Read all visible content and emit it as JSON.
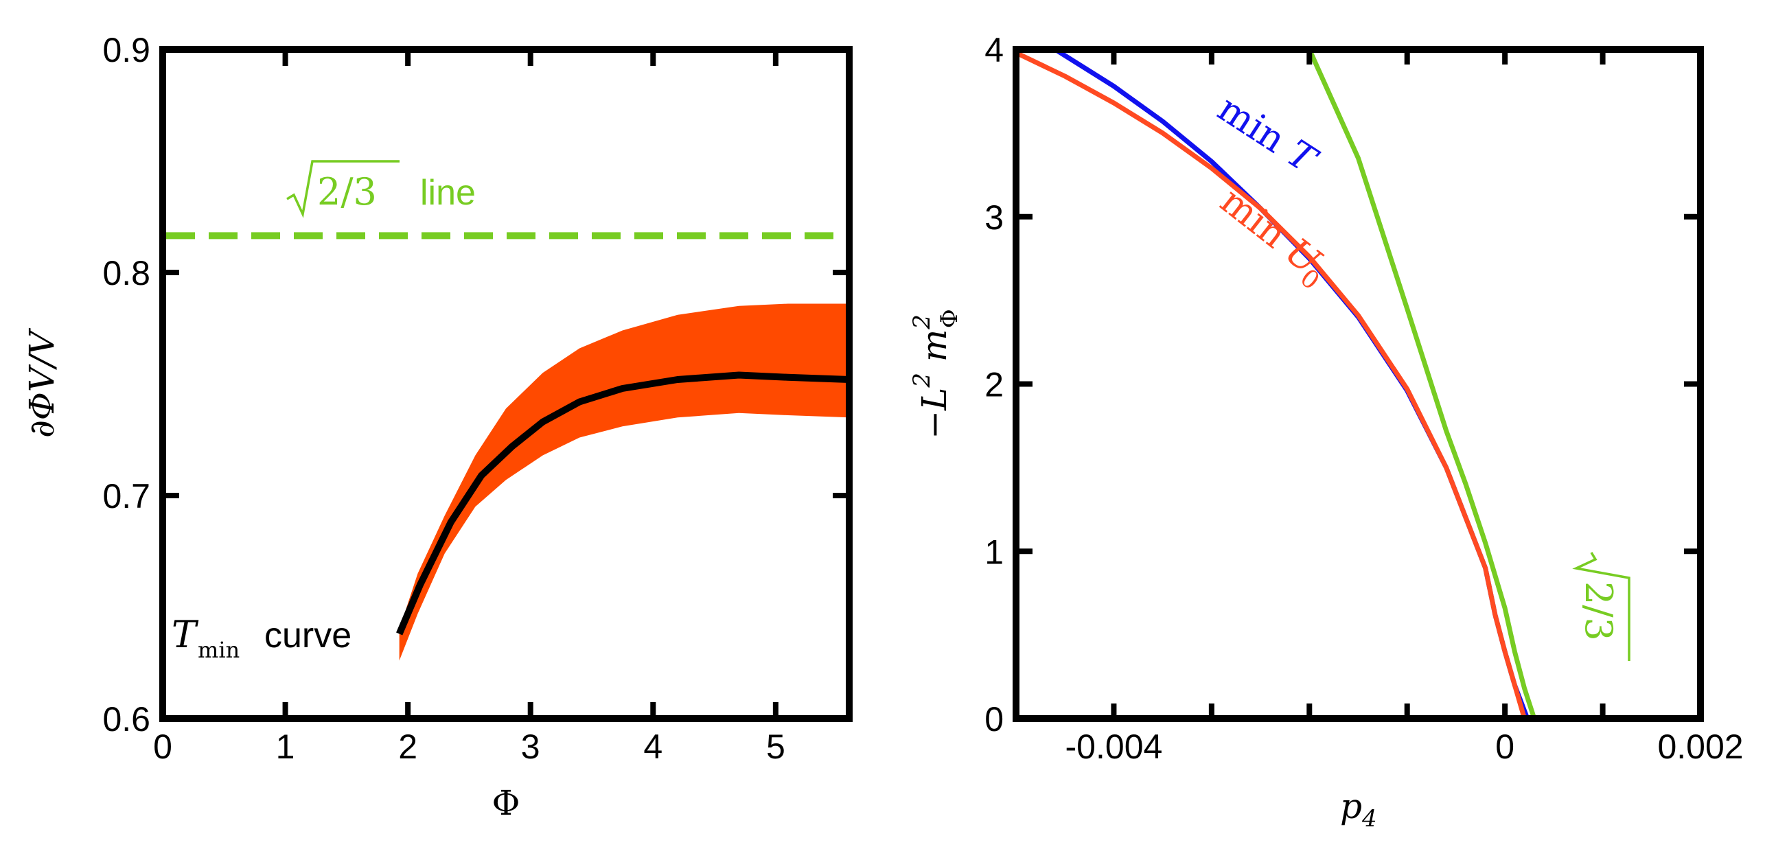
{
  "chart_data": [
    {
      "type": "line",
      "panel": "left",
      "xlabel": "Φ",
      "ylabel": "∂ΦV/V",
      "xlim": [
        0,
        5.6
      ],
      "ylim": [
        0.6,
        0.9
      ],
      "x_ticks": [
        "0",
        "1",
        "2",
        "3",
        "4",
        "5"
      ],
      "y_ticks": [
        "0.6",
        "0.7",
        "0.8",
        "0.9"
      ],
      "grid": false,
      "reference_line": {
        "value": 0.8165,
        "label": "√2/3 line",
        "color": "#77cc22",
        "style": "dashed"
      },
      "band": {
        "color": "#ff4a00",
        "x": [
          1.93,
          2.08,
          2.3,
          2.55,
          2.8,
          3.1,
          3.4,
          3.75,
          4.2,
          4.7,
          5.1,
          5.6
        ],
        "lower": [
          0.626,
          0.647,
          0.674,
          0.695,
          0.707,
          0.718,
          0.726,
          0.731,
          0.735,
          0.737,
          0.736,
          0.735
        ],
        "upper": [
          0.64,
          0.665,
          0.691,
          0.718,
          0.739,
          0.755,
          0.766,
          0.774,
          0.781,
          0.785,
          0.786,
          0.786
        ]
      },
      "series": [
        {
          "name": "Tmin curve",
          "color": "#000000",
          "x": [
            1.93,
            2.1,
            2.35,
            2.6,
            2.85,
            3.1,
            3.4,
            3.75,
            4.2,
            4.7,
            5.1,
            5.6
          ],
          "y": [
            0.638,
            0.66,
            0.688,
            0.709,
            0.722,
            0.733,
            0.742,
            0.748,
            0.752,
            0.754,
            0.753,
            0.752
          ]
        }
      ]
    },
    {
      "type": "line",
      "panel": "right",
      "xlabel": "p4",
      "ylabel": "−L² m²Φ",
      "xlim": [
        -0.005,
        0.002
      ],
      "ylim": [
        0,
        4
      ],
      "x_ticks": [
        "-0.004",
        "0",
        "0.002"
      ],
      "y_ticks": [
        "0",
        "1",
        "2",
        "3",
        "4"
      ],
      "grid": false,
      "series": [
        {
          "name": "min T",
          "color": "#1111ee",
          "x": [
            -0.0046,
            -0.004,
            -0.0035,
            -0.003,
            -0.0025,
            -0.002,
            -0.0015,
            -0.001,
            -0.0006,
            -0.0004,
            -0.0002,
            -0.0001,
            0.0,
            0.0001,
            0.00023
          ],
          "y": [
            4.0,
            3.78,
            3.57,
            3.33,
            3.05,
            2.75,
            2.4,
            1.96,
            1.5,
            1.2,
            0.9,
            0.62,
            0.4,
            0.2,
            0.0
          ]
        },
        {
          "name": "min U0",
          "color": "#ff4a22",
          "x": [
            -0.005,
            -0.0045,
            -0.004,
            -0.0035,
            -0.003,
            -0.0025,
            -0.002,
            -0.0015,
            -0.001,
            -0.0006,
            -0.0004,
            -0.0002,
            -0.0001,
            0.0,
            0.0001,
            0.0002
          ],
          "y": [
            3.98,
            3.84,
            3.68,
            3.5,
            3.29,
            3.05,
            2.76,
            2.41,
            1.97,
            1.5,
            1.2,
            0.9,
            0.62,
            0.4,
            0.2,
            0.0
          ]
        },
        {
          "name": "√2/3",
          "color": "#77cc22",
          "x": [
            -0.002,
            -0.0015,
            -0.001,
            -0.0006,
            -0.0004,
            -0.0002,
            0.0,
            0.0001,
            0.0002,
            0.0003
          ],
          "y": [
            4.0,
            3.35,
            2.45,
            1.72,
            1.4,
            1.05,
            0.66,
            0.4,
            0.18,
            0.0
          ]
        }
      ]
    }
  ],
  "annotations": {
    "left": {
      "ref_line_label": {
        "sqrt_arg": "2/3",
        "word": "line"
      },
      "curve_label": {
        "symbol": "T",
        "subscript": "min",
        "word": "curve"
      }
    },
    "right": {
      "min_t": {
        "prefix": "min",
        "symbol": "T"
      },
      "min_u0": {
        "prefix": "min",
        "symbol": "U",
        "subscript": "0"
      },
      "sqrt_label": "2/3"
    }
  }
}
